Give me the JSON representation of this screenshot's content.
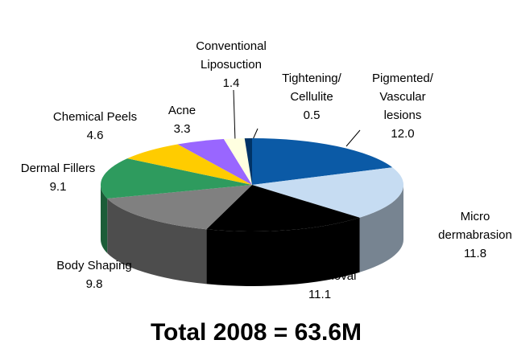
{
  "chart_data": {
    "type": "pie",
    "title": "Total 2008 = 63.6M",
    "categories": [
      "Pigmented/\nVascular\nlesions",
      "Micro\ndermabrasion",
      "Hair Removal",
      "Body Shaping",
      "Dermal Fillers",
      "Chemical Peels",
      "Acne",
      "Conventional\nLiposuction",
      "Tightening/\nCellulite"
    ],
    "values": [
      12.0,
      11.8,
      11.1,
      9.8,
      9.1,
      4.6,
      3.3,
      1.4,
      0.5
    ],
    "value_labels": [
      "12.0",
      "11.8",
      "11.1",
      "9.8",
      "9.1",
      "4.6",
      "3.3",
      "1.4",
      "0.5"
    ],
    "colors": [
      "#0b5aa6",
      "#c6dcf2",
      "#000000",
      "#808080",
      "#2e9b5e",
      "#ffcc00",
      "#9966ff",
      "#ffffe0",
      "#003366"
    ]
  }
}
